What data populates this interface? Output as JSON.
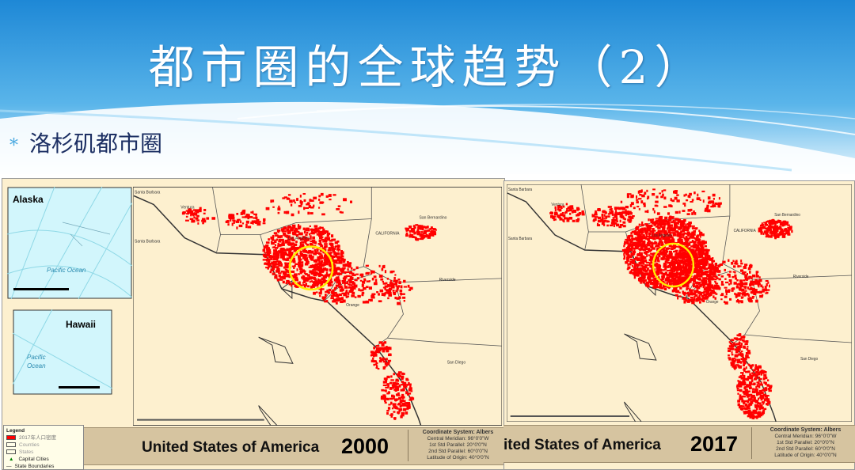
{
  "slide": {
    "title": "都市圈的全球趋势（2）",
    "bullet": "洛杉矶都市圈",
    "bullet_marker": "*"
  },
  "colors": {
    "banner_top": "#1e88d6",
    "banner_bottom": "#bfe4f8",
    "urban": "#ff0000",
    "highlight": "#ffee00",
    "land": "#fdf0cf",
    "ocean_inset": "#d2f6fc",
    "band": "#d6c4a0",
    "title_text": "#1c2f63"
  },
  "maps": [
    {
      "year": "2000",
      "country": "United States of America",
      "density": "lower"
    },
    {
      "year": "2017",
      "country": "ited States of America",
      "density": "higher"
    }
  ],
  "insets": {
    "alaska": "Alaska",
    "hawaii": "Hawaii",
    "ocean_label": "Pacific Ocean",
    "ocean_label_1": "Pacific",
    "ocean_label_2": "Ocean"
  },
  "place_labels": {
    "santa_barbara": "Santa Barbara",
    "santa_barbara_2": "Santa Barbara",
    "ventura": "Ventura",
    "san_bernardino": "San Bernardino",
    "riverside": "Riverside",
    "san_diego": "San Diego",
    "los_angeles": "Los Angeles",
    "california": "CALIFORNIA",
    "orange": "Orange"
  },
  "coordinate_system": {
    "title": "Coordinate System: Albers",
    "central_meridian": "Central Meridian: 96°0'0\"W",
    "std1": "1st Std Parallel: 20°0'0\"N",
    "std2": "2nd Std Parallel: 60°0'0\"N",
    "origin": "Latitude of Origin: 40°0'0\"N"
  },
  "legend": {
    "title": "Legend",
    "items": [
      "2017年人口密度",
      "Counties",
      "States",
      "Capital Cities",
      "State Boundaries"
    ]
  }
}
